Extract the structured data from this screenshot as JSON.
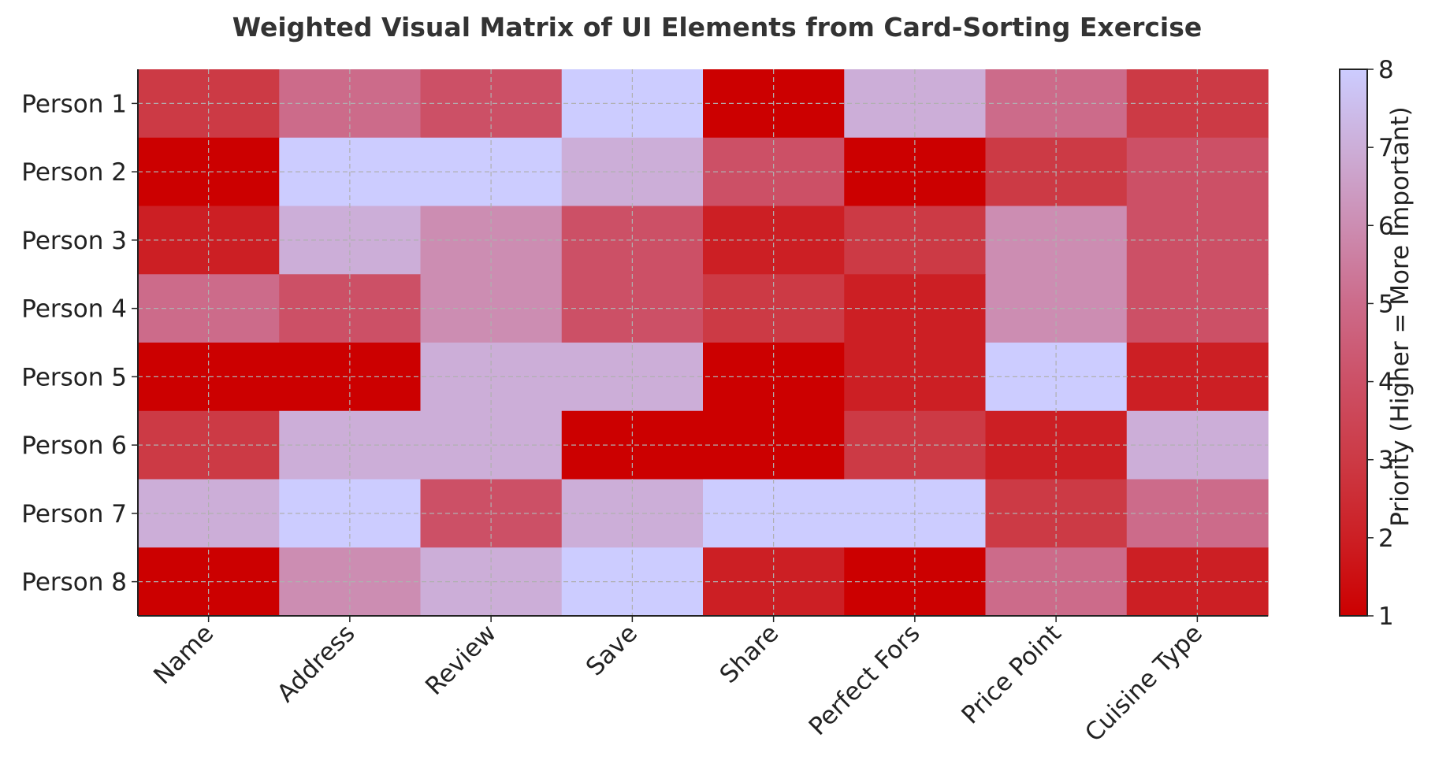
{
  "chart_data": {
    "type": "heatmap",
    "title": "Weighted Visual Matrix of UI Elements from Card-Sorting Exercise",
    "xlabel": "",
    "ylabel": "",
    "columns": [
      "Name",
      "Address",
      "Review",
      "Save",
      "Share",
      "Perfect Fors",
      "Price Point",
      "Cuisine Type"
    ],
    "rows": [
      "Person 1",
      "Person 2",
      "Person 3",
      "Person 4",
      "Person 5",
      "Person 6",
      "Person 7",
      "Person 8"
    ],
    "values": [
      [
        3,
        5,
        4,
        8,
        1,
        7,
        5,
        3
      ],
      [
        1,
        8,
        8,
        7,
        4,
        1,
        3,
        4
      ],
      [
        2,
        7,
        6,
        4,
        2,
        3,
        6,
        4
      ],
      [
        5,
        4,
        6,
        4,
        3,
        2,
        6,
        4
      ],
      [
        1,
        1,
        7,
        7,
        1,
        2,
        8,
        2
      ],
      [
        3,
        7,
        7,
        1,
        1,
        3,
        2,
        7
      ],
      [
        7,
        8,
        4,
        7,
        8,
        8,
        3,
        5
      ],
      [
        1,
        6,
        7,
        8,
        2,
        1,
        5,
        2
      ]
    ],
    "colorbar": {
      "label": "Priority (Higher = More Important)",
      "min": 1,
      "max": 8,
      "ticks": [
        "1",
        "2",
        "3",
        "4",
        "5",
        "6",
        "7",
        "8"
      ]
    },
    "colors": [
      "#cc0000",
      "#cc1f24",
      "#cc3a45",
      "#cc5066",
      "#cc6b8a",
      "#cc8db2",
      "#ccaed8",
      "#ccccff"
    ],
    "grid": true
  }
}
